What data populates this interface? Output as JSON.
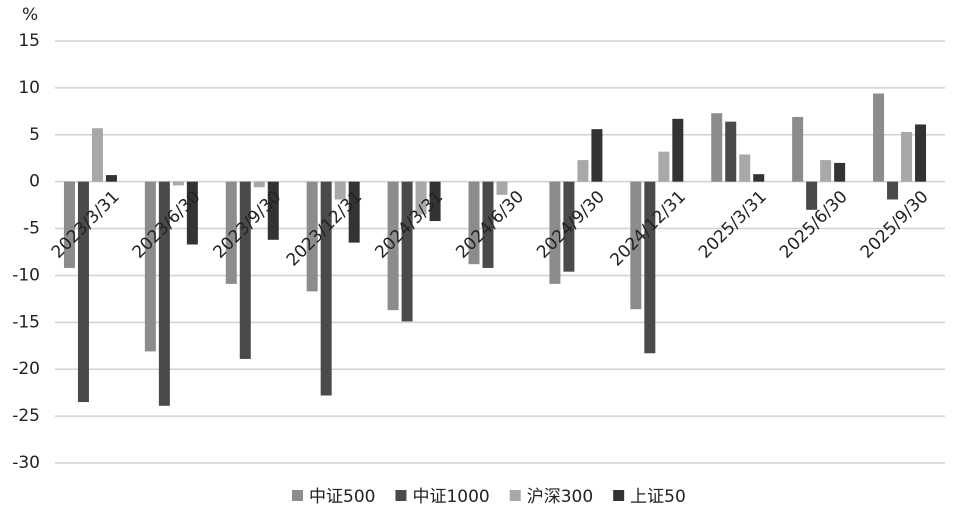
{
  "chart_data": {
    "type": "bar",
    "y_unit": "%",
    "categories": [
      "2023/3/31",
      "2023/6/30",
      "2023/9/30",
      "2023/12/31",
      "2024/3/31",
      "2024/6/30",
      "2024/9/30",
      "2024/12/31",
      "2025/3/31",
      "2025/6/30",
      "2025/9/30"
    ],
    "series": [
      {
        "name": "中证500",
        "color": "#8c8c8c",
        "values": [
          -9.2,
          -18.1,
          -10.9,
          -11.7,
          -13.7,
          -8.8,
          -10.9,
          -13.6,
          7.3,
          6.9,
          9.4
        ]
      },
      {
        "name": "中证1000",
        "color": "#4a4a4a",
        "values": [
          -23.5,
          -23.9,
          -18.9,
          -22.8,
          -14.9,
          -9.2,
          -9.6,
          -18.3,
          6.4,
          -3.0,
          -1.9
        ]
      },
      {
        "name": "沪深300",
        "color": "#a8a8a8",
        "values": [
          5.7,
          -0.4,
          -0.6,
          -1.9,
          -3.5,
          -1.4,
          2.3,
          3.2,
          2.9,
          2.3,
          5.3
        ]
      },
      {
        "name": "上证50",
        "color": "#333333",
        "values": [
          0.7,
          -6.7,
          -6.2,
          -6.5,
          -4.2,
          0,
          5.6,
          6.7,
          0.8,
          2.0,
          6.1
        ]
      }
    ],
    "ylim": [
      -30,
      15
    ],
    "yticks": [
      -30,
      -25,
      -20,
      -15,
      -10,
      -5,
      0,
      5,
      10,
      15
    ],
    "grid": true,
    "legend": "bottom"
  }
}
